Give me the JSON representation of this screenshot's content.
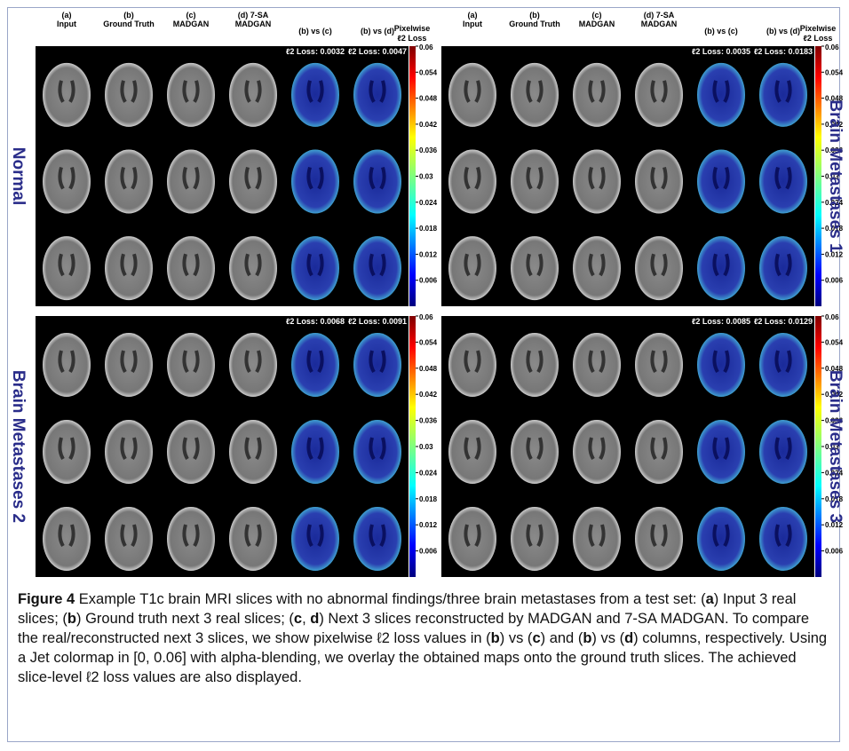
{
  "figure": {
    "column_headers": [
      {
        "line1": "(a)",
        "line2": "Input"
      },
      {
        "line1": "(b)",
        "line2": "Ground Truth"
      },
      {
        "line1": "(c)",
        "line2": "MADGAN"
      },
      {
        "line1": "(d) 7-SA",
        "line2": "MADGAN"
      },
      {
        "line1": "",
        "line2": "(b) vs (c)"
      },
      {
        "line1": "",
        "line2": "(b) vs (d)"
      }
    ],
    "colorbar": {
      "label_line1": "Pixelwise",
      "label_line2": "ℓ2 Loss",
      "ticks": [
        0.06,
        0.054,
        0.048,
        0.042,
        0.036,
        0.03,
        0.024,
        0.018,
        0.012,
        0.006
      ]
    },
    "panels": [
      {
        "label": "Normal",
        "loss_c": "ℓ2 Loss: 0.0032",
        "loss_d": "ℓ2 Loss: 0.0047"
      },
      {
        "label": "Brain Metastases 1",
        "loss_c": "ℓ2 Loss: 0.0035",
        "loss_d": "ℓ2 Loss: 0.0183"
      },
      {
        "label": "Brain Metastases 2",
        "loss_c": "ℓ2 Loss: 0.0068",
        "loss_d": "ℓ2 Loss: 0.0091"
      },
      {
        "label": "Brain Metastases 3",
        "loss_c": "ℓ2 Loss: 0.0085",
        "loss_d": "ℓ2 Loss: 0.0129"
      }
    ],
    "caption": {
      "label": "Figure 4",
      "segments": [
        {
          "text": " Example T1c brain MRI slices with no abnormal findings/three brain metastases from a test set: ("
        },
        {
          "text": "a",
          "bold": true
        },
        {
          "text": ") Input 3 real slices; ("
        },
        {
          "text": "b",
          "bold": true
        },
        {
          "text": ") Ground truth next 3 real slices; ("
        },
        {
          "text": "c",
          "bold": true
        },
        {
          "text": ", "
        },
        {
          "text": "d",
          "bold": true
        },
        {
          "text": ") Next 3 slices reconstructed by MADGAN and 7-SA MADGAN. To compare the real/reconstructed next 3 slices, we show pixelwise ℓ2 loss values in ("
        },
        {
          "text": "b",
          "bold": true
        },
        {
          "text": ") vs ("
        },
        {
          "text": "c",
          "bold": true
        },
        {
          "text": ") and ("
        },
        {
          "text": "b",
          "bold": true
        },
        {
          "text": ") vs ("
        },
        {
          "text": "d",
          "bold": true
        },
        {
          "text": ") columns, respectively. Using a Jet colormap in [0, 0.06] with alpha-blending, we overlay the obtained maps onto the ground truth slices. The achieved slice-level ℓ2 loss values are also displayed."
        }
      ]
    }
  }
}
